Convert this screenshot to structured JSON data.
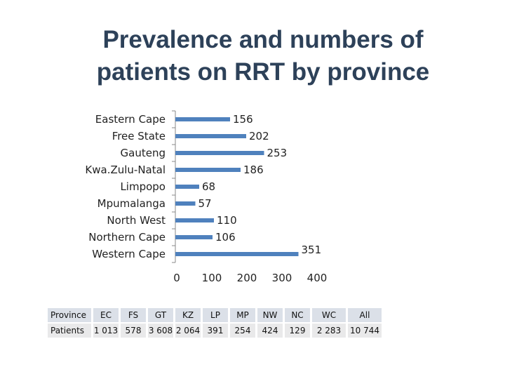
{
  "title": {
    "line1": "Prevalence and numbers of",
    "line2": "patients on RRT by province"
  },
  "chart_data": {
    "type": "bar",
    "orientation": "horizontal",
    "categories": [
      "Eastern Cape",
      "Free State",
      "Gauteng",
      "Kwa.Zulu-Natal",
      "Limpopo",
      "Mpumalanga",
      "North West",
      "Northern Cape",
      "Western Cape"
    ],
    "values": [
      156,
      202,
      253,
      186,
      68,
      57,
      110,
      106,
      351
    ],
    "value_labels": [
      "156",
      "202",
      "253",
      "186",
      "68",
      "57",
      "110",
      "106",
      "351"
    ],
    "xlim": [
      0,
      400
    ],
    "xticks": [
      0,
      100,
      200,
      300,
      400
    ],
    "xtick_labels": [
      "0",
      "100",
      "200",
      "300",
      "400"
    ],
    "bar_color": "#4f81bd",
    "grid": false,
    "legend": "none"
  },
  "table": {
    "header_label": "Province",
    "row_label": "Patients",
    "columns": [
      "EC",
      "FS",
      "GT",
      "KZ",
      "LP",
      "MP",
      "NW",
      "NC",
      "WC",
      "All"
    ],
    "values": [
      "1 013",
      "578",
      "3 608",
      "2 064",
      "391",
      "254",
      "424",
      "129",
      "2 283",
      "10 744"
    ]
  },
  "colors": {
    "title": "#2d4159",
    "table_header_bg": "#dbe0e8",
    "table_cell_bg": "#e9e9ea",
    "axis": "#888888"
  }
}
